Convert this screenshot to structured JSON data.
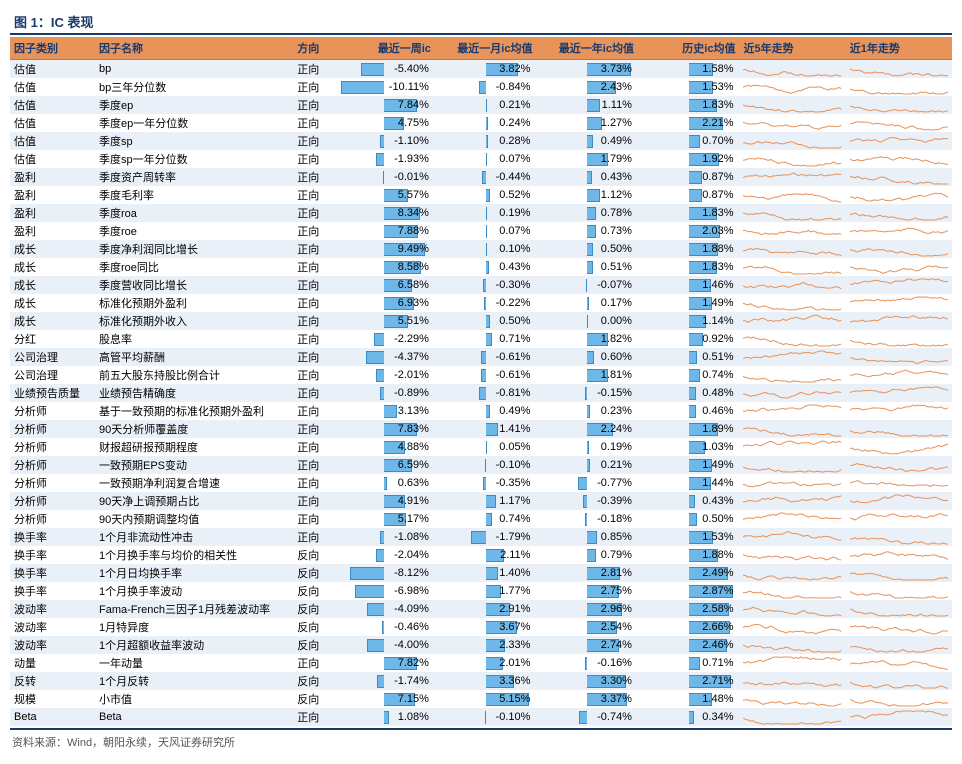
{
  "title": "图 1：IC 表现",
  "source": "资料来源：Wind，朝阳永续，天风证券研究所",
  "columns": {
    "cat": "因子类别",
    "name": "因子名称",
    "dir": "方向",
    "ic1w": "最近一周ic",
    "ic1m": "最近一月ic均值",
    "ic1y": "最近一年ic均值",
    "ichist": "历史ic均值",
    "trend5": "近5年走势",
    "trend1": "近1年走势"
  },
  "style": {
    "bar_fill": "#6db8e8",
    "bar_border": "#3a8cc8",
    "spark_color": "#e8935a",
    "header_bg": "#e8935a",
    "header_fg": "#1a3a6c",
    "alt_row_bg": "#eaf0f8",
    "row_bg": "#ffffff",
    "scale_1w": 11.0,
    "scale_1m": 5.5,
    "scale_1y": 4.0,
    "scale_hist": 3.0
  },
  "rows": [
    {
      "cat": "估值",
      "name": "bp",
      "dir": "正向",
      "ic1w": -5.4,
      "ic1m": 3.82,
      "ic1y": 3.73,
      "ichist": 1.58
    },
    {
      "cat": "估值",
      "name": "bp三年分位数",
      "dir": "正向",
      "ic1w": -10.11,
      "ic1m": -0.84,
      "ic1y": 2.43,
      "ichist": 1.53
    },
    {
      "cat": "估值",
      "name": "季度ep",
      "dir": "正向",
      "ic1w": 7.84,
      "ic1m": 0.21,
      "ic1y": 1.11,
      "ichist": 1.83
    },
    {
      "cat": "估值",
      "name": "季度ep一年分位数",
      "dir": "正向",
      "ic1w": 4.75,
      "ic1m": 0.24,
      "ic1y": 1.27,
      "ichist": 2.21
    },
    {
      "cat": "估值",
      "name": "季度sp",
      "dir": "正向",
      "ic1w": -1.1,
      "ic1m": 0.28,
      "ic1y": 0.49,
      "ichist": 0.7
    },
    {
      "cat": "估值",
      "name": "季度sp一年分位数",
      "dir": "正向",
      "ic1w": -1.93,
      "ic1m": 0.07,
      "ic1y": 1.79,
      "ichist": 1.92
    },
    {
      "cat": "盈利",
      "name": "季度资产周转率",
      "dir": "正向",
      "ic1w": -0.01,
      "ic1m": -0.44,
      "ic1y": 0.43,
      "ichist": 0.87
    },
    {
      "cat": "盈利",
      "name": "季度毛利率",
      "dir": "正向",
      "ic1w": 5.57,
      "ic1m": 0.52,
      "ic1y": 1.12,
      "ichist": 0.87
    },
    {
      "cat": "盈利",
      "name": "季度roa",
      "dir": "正向",
      "ic1w": 8.34,
      "ic1m": 0.19,
      "ic1y": 0.78,
      "ichist": 1.83
    },
    {
      "cat": "盈利",
      "name": "季度roe",
      "dir": "正向",
      "ic1w": 7.88,
      "ic1m": 0.07,
      "ic1y": 0.73,
      "ichist": 2.03
    },
    {
      "cat": "成长",
      "name": "季度净利润同比增长",
      "dir": "正向",
      "ic1w": 9.49,
      "ic1m": 0.1,
      "ic1y": 0.5,
      "ichist": 1.88
    },
    {
      "cat": "成长",
      "name": "季度roe同比",
      "dir": "正向",
      "ic1w": 8.58,
      "ic1m": 0.43,
      "ic1y": 0.51,
      "ichist": 1.83
    },
    {
      "cat": "成长",
      "name": "季度营收同比增长",
      "dir": "正向",
      "ic1w": 6.58,
      "ic1m": -0.3,
      "ic1y": -0.07,
      "ichist": 1.46
    },
    {
      "cat": "成长",
      "name": "标准化预期外盈利",
      "dir": "正向",
      "ic1w": 6.93,
      "ic1m": -0.22,
      "ic1y": 0.17,
      "ichist": 1.49
    },
    {
      "cat": "成长",
      "name": "标准化预期外收入",
      "dir": "正向",
      "ic1w": 5.51,
      "ic1m": 0.5,
      "ic1y": 0.0,
      "ichist": 1.14
    },
    {
      "cat": "分红",
      "name": "股息率",
      "dir": "正向",
      "ic1w": -2.29,
      "ic1m": 0.71,
      "ic1y": 1.82,
      "ichist": 0.92
    },
    {
      "cat": "公司治理",
      "name": "高管平均薪酬",
      "dir": "正向",
      "ic1w": -4.37,
      "ic1m": -0.61,
      "ic1y": 0.6,
      "ichist": 0.51
    },
    {
      "cat": "公司治理",
      "name": "前五大股东持股比例合计",
      "dir": "正向",
      "ic1w": -2.01,
      "ic1m": -0.61,
      "ic1y": 1.81,
      "ichist": 0.74
    },
    {
      "cat": "业绩预告质量",
      "name": "业绩预告精确度",
      "dir": "正向",
      "ic1w": -0.89,
      "ic1m": -0.81,
      "ic1y": -0.15,
      "ichist": 0.48
    },
    {
      "cat": "分析师",
      "name": "基于一致预期的标准化预期外盈利",
      "dir": "正向",
      "ic1w": 3.13,
      "ic1m": 0.49,
      "ic1y": 0.23,
      "ichist": 0.46
    },
    {
      "cat": "分析师",
      "name": "90天分析师覆盖度",
      "dir": "正向",
      "ic1w": 7.83,
      "ic1m": 1.41,
      "ic1y": 2.24,
      "ichist": 1.89
    },
    {
      "cat": "分析师",
      "name": "财报超研报预期程度",
      "dir": "正向",
      "ic1w": 4.88,
      "ic1m": 0.05,
      "ic1y": 0.19,
      "ichist": 1.03
    },
    {
      "cat": "分析师",
      "name": "一致预期EPS变动",
      "dir": "正向",
      "ic1w": 6.59,
      "ic1m": -0.1,
      "ic1y": 0.21,
      "ichist": 1.49
    },
    {
      "cat": "分析师",
      "name": "一致预期净利润复合增速",
      "dir": "正向",
      "ic1w": 0.63,
      "ic1m": -0.35,
      "ic1y": -0.77,
      "ichist": 1.44
    },
    {
      "cat": "分析师",
      "name": "90天净上调预期占比",
      "dir": "正向",
      "ic1w": 4.91,
      "ic1m": 1.17,
      "ic1y": -0.39,
      "ichist": 0.43
    },
    {
      "cat": "分析师",
      "name": "90天内预期调整均值",
      "dir": "正向",
      "ic1w": 5.17,
      "ic1m": 0.74,
      "ic1y": -0.18,
      "ichist": 0.5
    },
    {
      "cat": "换手率",
      "name": "1个月非流动性冲击",
      "dir": "正向",
      "ic1w": -1.08,
      "ic1m": -1.79,
      "ic1y": 0.85,
      "ichist": 1.53
    },
    {
      "cat": "换手率",
      "name": "1个月换手率与均价的相关性",
      "dir": "反向",
      "ic1w": -2.04,
      "ic1m": 2.11,
      "ic1y": 0.79,
      "ichist": 1.88
    },
    {
      "cat": "换手率",
      "name": "1个月日均换手率",
      "dir": "反向",
      "ic1w": -8.12,
      "ic1m": 1.4,
      "ic1y": 2.81,
      "ichist": 2.49
    },
    {
      "cat": "换手率",
      "name": "1个月换手率波动",
      "dir": "反向",
      "ic1w": -6.98,
      "ic1m": 1.77,
      "ic1y": 2.75,
      "ichist": 2.87
    },
    {
      "cat": "波动率",
      "name": "Fama-French三因子1月残差波动率",
      "dir": "反向",
      "ic1w": -4.09,
      "ic1m": 2.91,
      "ic1y": 2.96,
      "ichist": 2.58
    },
    {
      "cat": "波动率",
      "name": "1月特异度",
      "dir": "反向",
      "ic1w": -0.46,
      "ic1m": 3.67,
      "ic1y": 2.54,
      "ichist": 2.66
    },
    {
      "cat": "波动率",
      "name": "1个月超额收益率波动",
      "dir": "反向",
      "ic1w": -4.0,
      "ic1m": 2.33,
      "ic1y": 2.74,
      "ichist": 2.46
    },
    {
      "cat": "动量",
      "name": "一年动量",
      "dir": "正向",
      "ic1w": 7.82,
      "ic1m": 2.01,
      "ic1y": -0.16,
      "ichist": 0.71
    },
    {
      "cat": "反转",
      "name": "1个月反转",
      "dir": "反向",
      "ic1w": -1.74,
      "ic1m": 3.36,
      "ic1y": 3.3,
      "ichist": 2.71
    },
    {
      "cat": "规模",
      "name": "小市值",
      "dir": "反向",
      "ic1w": 7.15,
      "ic1m": 5.15,
      "ic1y": 3.37,
      "ichist": 1.48
    },
    {
      "cat": "Beta",
      "name": "Beta",
      "dir": "正向",
      "ic1w": 1.08,
      "ic1m": -0.1,
      "ic1y": -0.74,
      "ichist": 0.34
    }
  ]
}
